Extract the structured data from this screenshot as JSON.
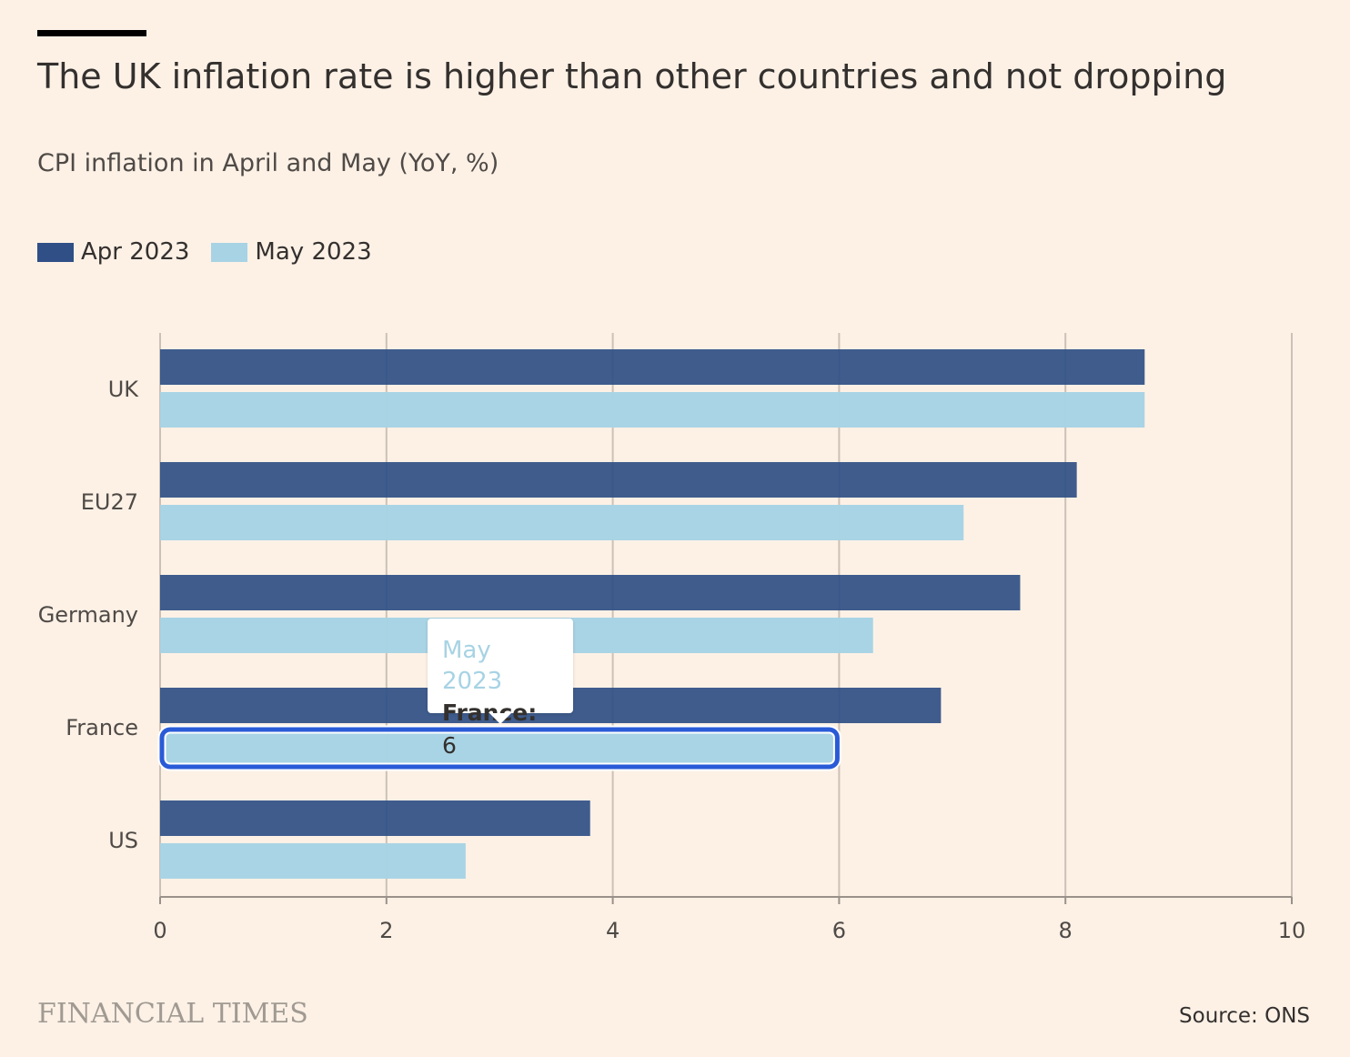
{
  "header": {
    "title": "The UK inflation rate is higher than other countries and not dropping",
    "subtitle": "CPI inflation in April and May (YoY, %)"
  },
  "legend": [
    {
      "label": "Apr 2023",
      "color": "#2f4f86"
    },
    {
      "label": "May 2023",
      "color": "#a7d3e4"
    }
  ],
  "tooltip": {
    "series": "May 2023",
    "category": "France:",
    "value": "6"
  },
  "footer": {
    "brand": "FINANCIAL TIMES",
    "source": "Source: ONS"
  },
  "colors": {
    "highlight": "#2a5bd7",
    "grid": "#ccc1b7"
  },
  "chart_data": {
    "type": "bar",
    "orientation": "horizontal",
    "categories": [
      "UK",
      "EU27",
      "Germany",
      "France",
      "US"
    ],
    "series": [
      {
        "name": "Apr 2023",
        "values": [
          8.7,
          8.1,
          7.6,
          6.9,
          3.8
        ]
      },
      {
        "name": "May 2023",
        "values": [
          8.7,
          7.1,
          6.3,
          6.0,
          2.7
        ]
      }
    ],
    "xlim": [
      0,
      10
    ],
    "xticks": [
      "0",
      "2",
      "4",
      "6",
      "8",
      "10"
    ],
    "grid": true,
    "highlighted": {
      "series": "May 2023",
      "category": "France"
    }
  }
}
